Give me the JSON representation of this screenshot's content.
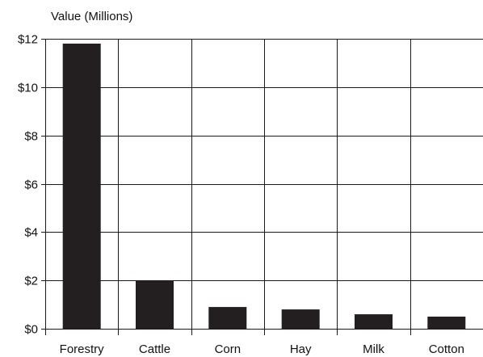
{
  "chart_data": {
    "type": "bar",
    "title": "",
    "ylabel": "Value (Millions)",
    "xlabel": "",
    "categories": [
      "Forestry",
      "Cattle",
      "Corn",
      "Hay",
      "Milk",
      "Cotton"
    ],
    "values": [
      11.8,
      2.0,
      0.9,
      0.8,
      0.6,
      0.5
    ],
    "ylim": [
      0,
      12
    ],
    "yticks": [
      0,
      2,
      4,
      6,
      8,
      10,
      12
    ],
    "ytick_labels": [
      "$0",
      "$2",
      "$4",
      "$6",
      "$8",
      "$10",
      "$12"
    ],
    "grid": true,
    "colors": {
      "bar": "#231f20",
      "grid": "#1a1a1a",
      "text": "#111111"
    }
  }
}
